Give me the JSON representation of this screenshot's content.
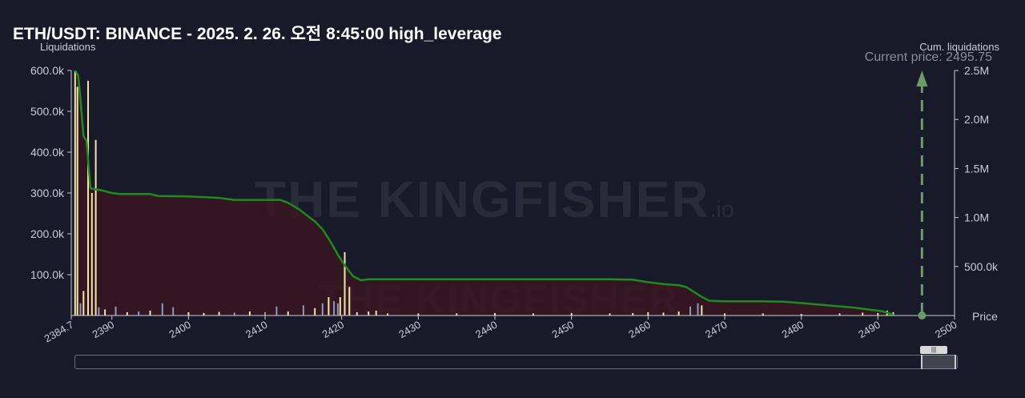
{
  "title": "ETH/USDT: BINANCE - 2025. 2. 26. 오전 8:45:00 high_leverage",
  "current_price_label": "Current price: 2495.75",
  "colors": {
    "background": "#181a29",
    "cum_line": "#1f8a1f",
    "cum_fill": "#3a1622",
    "bar_yellow": "#f2e6a6",
    "bar_blue": "#8a9ab8",
    "current_price_marker": "#6b9a6b"
  },
  "watermark": {
    "brand": "THE KINGFISHER",
    "suffix": ".io"
  },
  "chart_data": {
    "type": "bar",
    "title": "ETH/USDT: BINANCE - 2025. 2. 26. 오전 8:45:00 high_leverage",
    "xlabel": "Price",
    "ylabel_left": "Liquidations",
    "ylabel_right": "Cum. liquidations",
    "xlim": [
      2384.7,
      2500
    ],
    "ylim_left": [
      0,
      600000
    ],
    "ylim_right": [
      0,
      2500000
    ],
    "x_ticks": [
      "2384.7",
      "2390",
      "2400",
      "2410",
      "2420",
      "2430",
      "2440",
      "2450",
      "2460",
      "2470",
      "2480",
      "2490",
      "2500"
    ],
    "x_tick_values": [
      2384.7,
      2390,
      2400,
      2410,
      2420,
      2430,
      2440,
      2450,
      2460,
      2470,
      2480,
      2490,
      2500
    ],
    "y_left_ticks": [
      "100.0k",
      "200.0k",
      "300.0k",
      "400.0k",
      "500.0k",
      "600.0k"
    ],
    "y_left_tick_values": [
      100000,
      200000,
      300000,
      400000,
      500000,
      600000
    ],
    "y_right_ticks": [
      "500.0k",
      "1.0M",
      "1.5M",
      "2.0M",
      "2.5M"
    ],
    "y_right_tick_values": [
      500000,
      1000000,
      1500000,
      2000000,
      2500000
    ],
    "current_price": 2495.75,
    "series": [
      {
        "name": "Cum. liquidations",
        "type": "area",
        "points": [
          [
            2385.2,
            2500000
          ],
          [
            2385.6,
            2450000
          ],
          [
            2385.9,
            2200000
          ],
          [
            2386.3,
            1830000
          ],
          [
            2386.7,
            1780000
          ],
          [
            2387.2,
            1300000
          ],
          [
            2387.6,
            1290000
          ],
          [
            2388.5,
            1280000
          ],
          [
            2390.0,
            1250000
          ],
          [
            2391.0,
            1240000
          ],
          [
            2395.0,
            1240000
          ],
          [
            2396.0,
            1220000
          ],
          [
            2400.0,
            1215000
          ],
          [
            2404.0,
            1200000
          ],
          [
            2406.0,
            1180000
          ],
          [
            2412.0,
            1180000
          ],
          [
            2413.0,
            1150000
          ],
          [
            2414.5,
            1080000
          ],
          [
            2415.5,
            1020000
          ],
          [
            2416.5,
            960000
          ],
          [
            2417.5,
            880000
          ],
          [
            2418.5,
            760000
          ],
          [
            2419.5,
            620000
          ],
          [
            2420.5,
            500000
          ],
          [
            2421.5,
            400000
          ],
          [
            2422.5,
            360000
          ],
          [
            2423.5,
            370000
          ],
          [
            2430.0,
            370000
          ],
          [
            2440.0,
            370000
          ],
          [
            2450.0,
            370000
          ],
          [
            2455.0,
            370000
          ],
          [
            2458.0,
            365000
          ],
          [
            2460.0,
            340000
          ],
          [
            2462.0,
            320000
          ],
          [
            2464.0,
            310000
          ],
          [
            2465.0,
            290000
          ],
          [
            2466.0,
            240000
          ],
          [
            2467.0,
            190000
          ],
          [
            2468.0,
            150000
          ],
          [
            2470.0,
            145000
          ],
          [
            2475.0,
            145000
          ],
          [
            2478.0,
            140000
          ],
          [
            2481.0,
            120000
          ],
          [
            2484.0,
            100000
          ],
          [
            2487.0,
            80000
          ],
          [
            2489.0,
            60000
          ],
          [
            2490.5,
            45000
          ],
          [
            2491.5,
            20000
          ],
          [
            2492.2,
            0
          ]
        ]
      },
      {
        "name": "Liquidations",
        "type": "bar",
        "bars": [
          [
            2385.2,
            600000,
            "yellow"
          ],
          [
            2385.5,
            560000,
            "yellow"
          ],
          [
            2385.9,
            30000,
            "blue"
          ],
          [
            2386.3,
            60000,
            "yellow"
          ],
          [
            2386.9,
            575000,
            "yellow"
          ],
          [
            2387.4,
            300000,
            "yellow"
          ],
          [
            2387.9,
            430000,
            "yellow"
          ],
          [
            2388.3,
            20000,
            "blue"
          ],
          [
            2389.1,
            15000,
            "yellow"
          ],
          [
            2390.5,
            22000,
            "blue"
          ],
          [
            2392.0,
            8000,
            "yellow"
          ],
          [
            2393.5,
            10000,
            "blue"
          ],
          [
            2395.0,
            12000,
            "yellow"
          ],
          [
            2396.6,
            30000,
            "blue"
          ],
          [
            2398.0,
            20000,
            "blue"
          ],
          [
            2400.0,
            8000,
            "yellow"
          ],
          [
            2402.0,
            6000,
            "yellow"
          ],
          [
            2404.0,
            9000,
            "yellow"
          ],
          [
            2406.0,
            7000,
            "blue"
          ],
          [
            2408.0,
            10000,
            "yellow"
          ],
          [
            2410.0,
            8000,
            "blue"
          ],
          [
            2411.5,
            22000,
            "blue"
          ],
          [
            2413.0,
            10000,
            "yellow"
          ],
          [
            2415.0,
            25000,
            "blue"
          ],
          [
            2416.5,
            18000,
            "yellow"
          ],
          [
            2417.5,
            30000,
            "blue"
          ],
          [
            2418.3,
            45000,
            "yellow"
          ],
          [
            2419.0,
            35000,
            "blue"
          ],
          [
            2419.5,
            30000,
            "blue"
          ],
          [
            2419.8,
            45000,
            "yellow"
          ],
          [
            2420.4,
            155000,
            "yellow"
          ],
          [
            2421.0,
            70000,
            "yellow"
          ],
          [
            2422.0,
            8000,
            "yellow"
          ],
          [
            2423.5,
            10000,
            "yellow"
          ],
          [
            2424.5,
            12000,
            "yellow"
          ],
          [
            2426.0,
            5000,
            "yellow"
          ],
          [
            2430.0,
            5000,
            "yellow"
          ],
          [
            2435.0,
            5000,
            "yellow"
          ],
          [
            2440.0,
            6000,
            "yellow"
          ],
          [
            2445.0,
            5000,
            "yellow"
          ],
          [
            2450.0,
            6000,
            "yellow"
          ],
          [
            2455.0,
            5000,
            "yellow"
          ],
          [
            2458.0,
            6000,
            "yellow"
          ],
          [
            2460.0,
            8000,
            "yellow"
          ],
          [
            2462.0,
            7000,
            "yellow"
          ],
          [
            2464.0,
            10000,
            "yellow"
          ],
          [
            2465.5,
            22000,
            "blue"
          ],
          [
            2466.5,
            30000,
            "blue"
          ],
          [
            2467.0,
            25000,
            "yellow"
          ],
          [
            2470.0,
            5000,
            "yellow"
          ],
          [
            2475.0,
            5000,
            "yellow"
          ],
          [
            2480.0,
            4000,
            "yellow"
          ],
          [
            2485.0,
            5000,
            "yellow"
          ],
          [
            2488.0,
            7000,
            "yellow"
          ],
          [
            2490.0,
            6000,
            "yellow"
          ],
          [
            2491.2,
            12000,
            "yellow"
          ],
          [
            2492.0,
            8000,
            "yellow"
          ]
        ]
      }
    ],
    "grid": false,
    "legend": "none"
  }
}
